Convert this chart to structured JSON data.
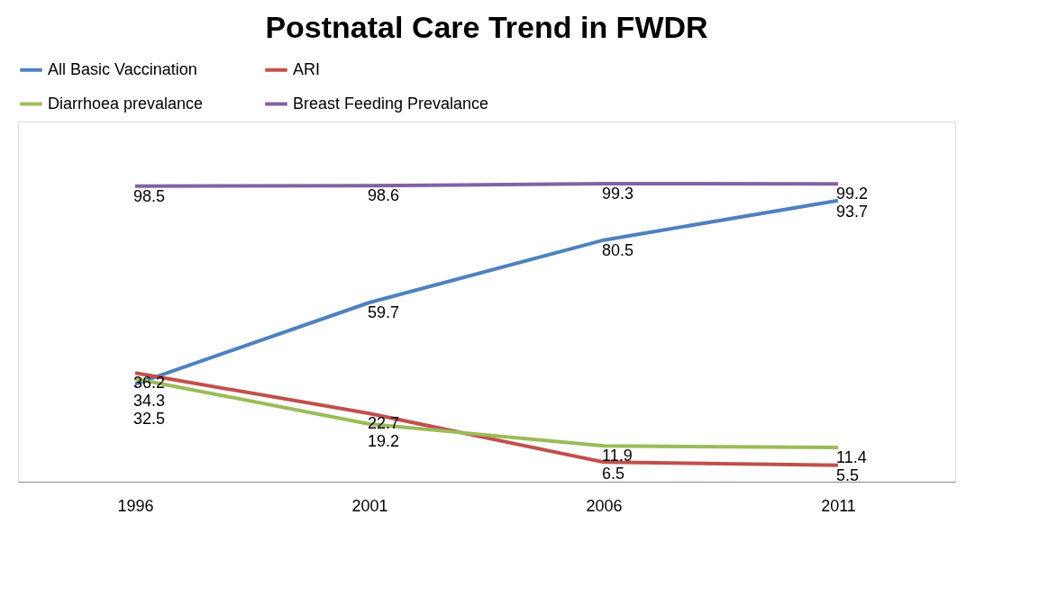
{
  "chart_data": {
    "type": "line",
    "title": "Postnatal Care Trend in FWDR",
    "categories": [
      "1996",
      "2001",
      "2006",
      "2011"
    ],
    "series": [
      {
        "name": "All Basic Vaccination",
        "color": "#4f81bd",
        "values": [
          32.5,
          59.7,
          80.5,
          93.7
        ]
      },
      {
        "name": "ARI",
        "color": "#c0504d",
        "values": [
          36.2,
          22.7,
          6.5,
          5.5
        ]
      },
      {
        "name": "Diarrhoea prevalance",
        "color": "#9bbb59",
        "values": [
          34.3,
          19.2,
          11.9,
          11.4
        ]
      },
      {
        "name": "Breast Feeding Prevalance",
        "color": "#8064a2",
        "values": [
          98.5,
          98.6,
          99.3,
          99.2
        ]
      }
    ],
    "ylim": [
      0,
      120
    ],
    "tick_labels": "x",
    "grid": false,
    "legend": "top",
    "marker": "none",
    "line_style": "solid",
    "data_labels": true
  }
}
